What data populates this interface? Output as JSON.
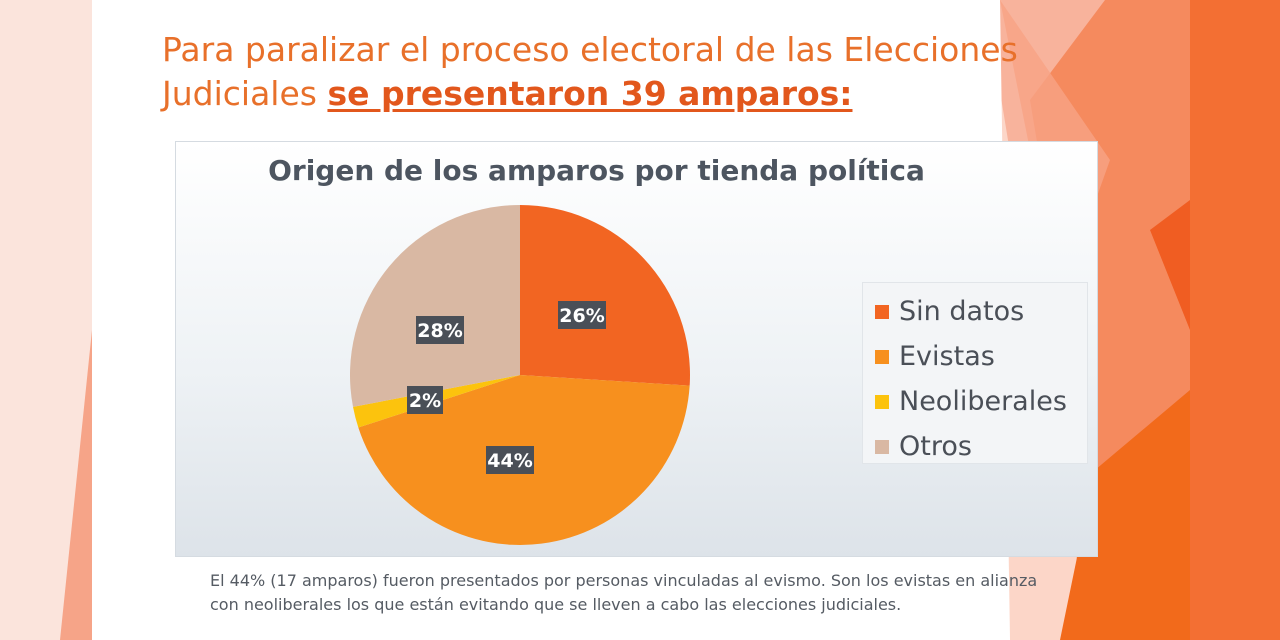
{
  "slide": {
    "title_part1": "Para paralizar el proceso electoral de las Elecciones Judiciales ",
    "title_emphasis": "se presentaron 39 amparos:",
    "caption": "El 44% (17 amparos) fueron presentados por personas vinculadas al evismo. Son los evistas en alianza con neoliberales los que están evitando que se lleven a cabo las elecciones judiciales."
  },
  "colors": {
    "accent": "#e8702a",
    "deco_light": "#f9c7b9",
    "deco_mid": "#f58a5e",
    "deco_dark": "#f26a1b"
  },
  "chart_data": {
    "type": "pie",
    "title": "Origen de los amparos por tienda política",
    "legend_position": "right",
    "slices": [
      {
        "name": "Sin datos",
        "value": 26,
        "label": "26%",
        "color": "#f26522"
      },
      {
        "name": "Evistas",
        "value": 44,
        "label": "44%",
        "color": "#f7901e"
      },
      {
        "name": "Neoliberales",
        "value": 2,
        "label": "2%",
        "color": "#fcc30d"
      },
      {
        "name": "Otros",
        "value": 28,
        "label": "28%",
        "color": "#d9b8a3"
      }
    ]
  }
}
